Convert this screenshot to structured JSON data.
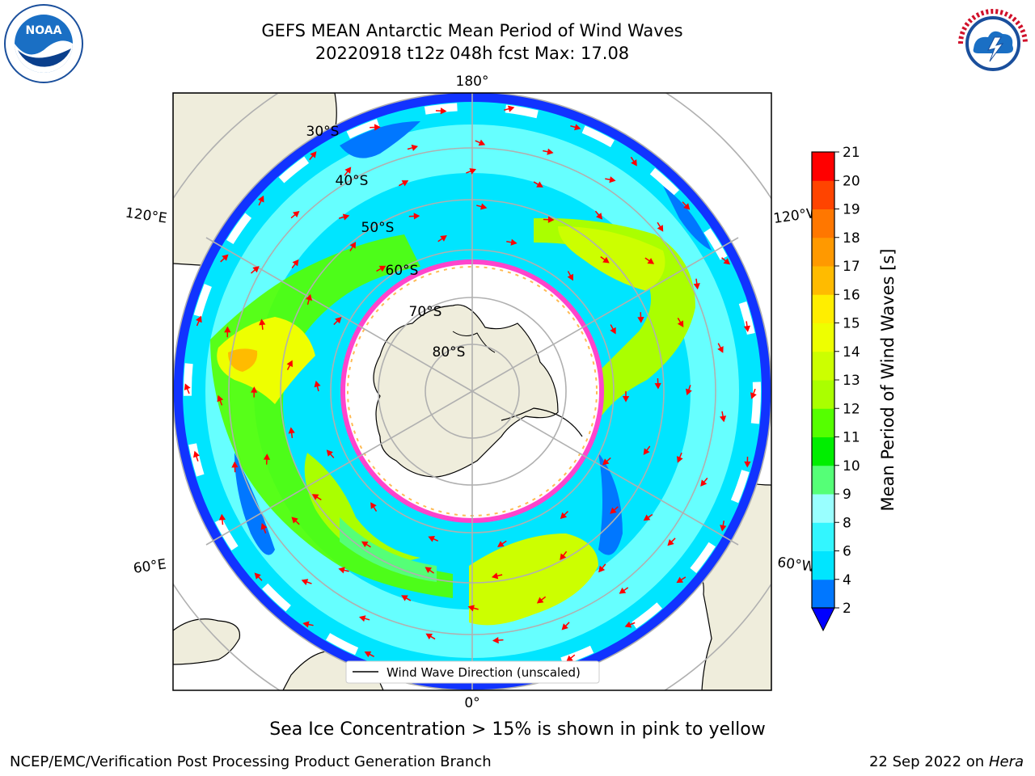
{
  "header": {
    "title_line1": "GEFS MEAN Antarctic Mean Period of Wind Waves",
    "title_line2": "20220918 t12z 048h fcst   Max: 17.08"
  },
  "logos": {
    "left": {
      "name": "noaa-logo",
      "text": "NOAA"
    },
    "right": {
      "name": "nws-logo",
      "text": "NATIONAL WEATHER SERVICE"
    }
  },
  "map": {
    "projection": "south-polar-stereographic",
    "longitude_labels": {
      "top": "180°",
      "bottom": "0°",
      "left_upper": "120°E",
      "left_lower": "60°E",
      "right_upper": "120°W",
      "right_lower": "60°W"
    },
    "latitude_labels": [
      "30°S",
      "40°S",
      "50°S",
      "60°S",
      "70°S",
      "80°S"
    ],
    "legend_label": "Wind Wave Direction (unscaled)",
    "land_color": "#efeddc",
    "ocean_color": "#ffffff"
  },
  "colorbar": {
    "label": "Mean Period of Wind Waves [s]",
    "ticks": [
      "2",
      "4",
      "6",
      "8",
      "9",
      "10",
      "11",
      "12",
      "13",
      "14",
      "15",
      "16",
      "17",
      "18",
      "19",
      "20",
      "21"
    ],
    "colors": [
      "#0077ff",
      "#00e5ff",
      "#33f6ff",
      "#99ffff",
      "#55ff77",
      "#00ee00",
      "#55ff00",
      "#aaff00",
      "#ccff00",
      "#eeff00",
      "#ffee00",
      "#ffbb00",
      "#ff9900",
      "#ff7700",
      "#ff4400",
      "#ff0000"
    ],
    "under_color": "#0000ff"
  },
  "footer": {
    "note": "Sea Ice Concentration > 15% is shown in pink to yellow",
    "credit_left": "NCEP/EMC/Verification Post Processing Product Generation Branch",
    "credit_right_date": "22 Sep 2022 on",
    "credit_right_machine": "Hera"
  }
}
